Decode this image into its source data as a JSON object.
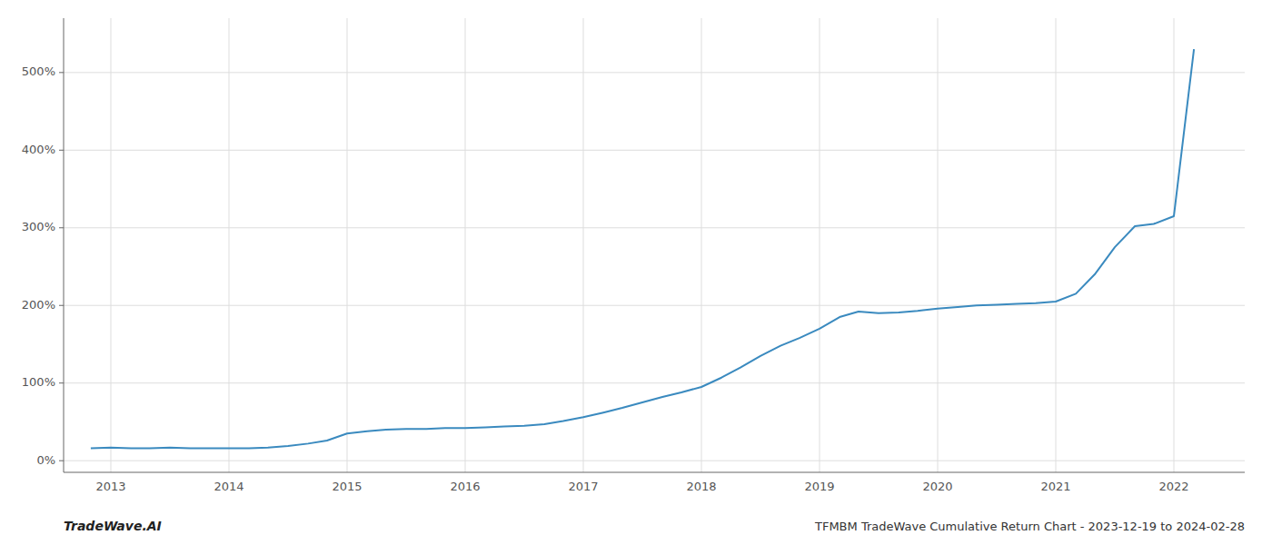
{
  "chart_data": {
    "type": "line",
    "title": "TFMBM TradeWave Cumulative Return Chart - 2023-12-19 to 2024-02-28",
    "annotations": [
      "TradeWave.AI"
    ],
    "color": "#3a8abf",
    "grid": true,
    "x": [
      2012.83,
      2013.0,
      2013.17,
      2013.33,
      2013.5,
      2013.67,
      2013.83,
      2014.0,
      2014.17,
      2014.33,
      2014.5,
      2014.67,
      2014.83,
      2015.0,
      2015.17,
      2015.33,
      2015.5,
      2015.67,
      2015.83,
      2016.0,
      2016.17,
      2016.33,
      2016.5,
      2016.67,
      2016.83,
      2017.0,
      2017.17,
      2017.33,
      2017.5,
      2017.67,
      2017.83,
      2018.0,
      2018.17,
      2018.33,
      2018.5,
      2018.67,
      2018.83,
      2019.0,
      2019.17,
      2019.33,
      2019.5,
      2019.67,
      2019.83,
      2020.0,
      2020.17,
      2020.33,
      2020.5,
      2020.67,
      2020.83,
      2021.0,
      2021.17,
      2021.33,
      2021.5,
      2021.67,
      2021.83,
      2022.0,
      2022.17
    ],
    "values": [
      16,
      17,
      16,
      16,
      17,
      16,
      16,
      16,
      16,
      17,
      19,
      22,
      26,
      35,
      38,
      40,
      41,
      41,
      42,
      42,
      43,
      44,
      45,
      47,
      51,
      56,
      62,
      68,
      75,
      82,
      88,
      95,
      107,
      120,
      135,
      148,
      158,
      170,
      185,
      192,
      190,
      191,
      193,
      196,
      198,
      200,
      201,
      202,
      203,
      205,
      215,
      240,
      275,
      302,
      305,
      315,
      530
    ],
    "xlim": [
      2012.6,
      2022.6
    ],
    "xticks": [
      2013,
      2014,
      2015,
      2016,
      2017,
      2018,
      2019,
      2020,
      2021,
      2022
    ],
    "ylim": [
      -15,
      570
    ],
    "yticks": [
      {
        "value": 0,
        "label": "0%"
      },
      {
        "value": 100,
        "label": "100%"
      },
      {
        "value": 200,
        "label": "200%"
      },
      {
        "value": 300,
        "label": "300%"
      },
      {
        "value": 400,
        "label": "400%"
      },
      {
        "value": 500,
        "label": "500%"
      }
    ]
  }
}
